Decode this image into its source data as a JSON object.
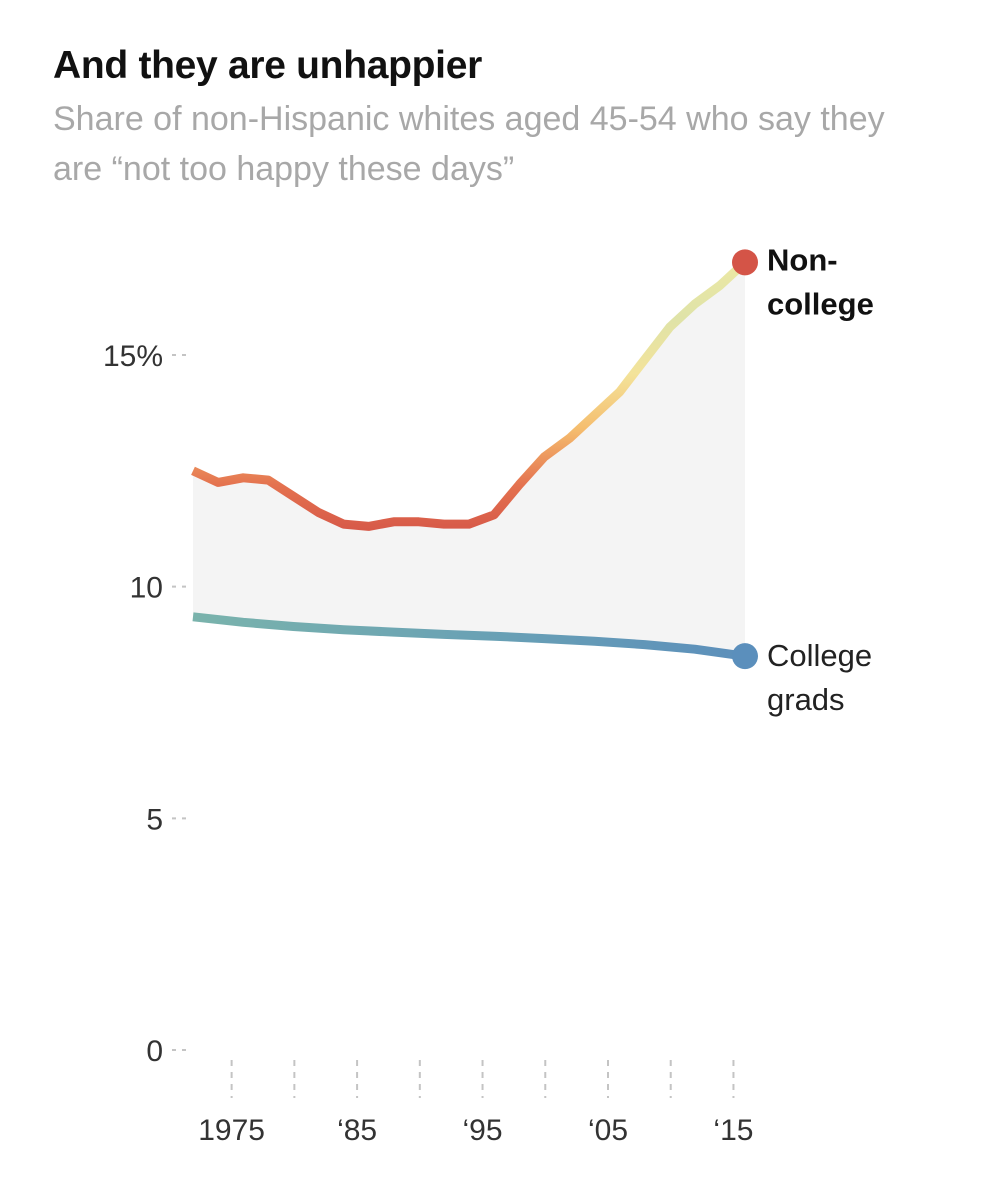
{
  "title": "And they are unhappier",
  "subtitle": "Share of non-Hispanic whites aged 45-54 who say they are “not too happy these days”",
  "chart_data": {
    "type": "line",
    "title": "And they are unhappier",
    "subtitle": "Share of non-Hispanic whites aged 45-54 who say they are “not too happy these days”",
    "xlabel": "",
    "ylabel": "",
    "xlim": [
      1972,
      2016
    ],
    "ylim": [
      0,
      17
    ],
    "grid": false,
    "y_ticks": [
      {
        "value": 0,
        "label": "0"
      },
      {
        "value": 5,
        "label": "5"
      },
      {
        "value": 10,
        "label": "10"
      },
      {
        "value": 15,
        "label": "15%"
      }
    ],
    "x_ticks": [
      {
        "value": 1975,
        "label": "1975"
      },
      {
        "value": 1980,
        "label": ""
      },
      {
        "value": 1985,
        "label": "‘85"
      },
      {
        "value": 1990,
        "label": ""
      },
      {
        "value": 1995,
        "label": "‘95"
      },
      {
        "value": 2000,
        "label": ""
      },
      {
        "value": 2005,
        "label": "‘05"
      },
      {
        "value": 2010,
        "label": ""
      },
      {
        "value": 2015,
        "label": "‘15"
      }
    ],
    "shaded_gap_between_series": true,
    "series": [
      {
        "name": "Non-college",
        "label_lines": [
          "Non-",
          "college"
        ],
        "gradient_colors": [
          "#ece8a4",
          "#dfe3a8",
          "#f3e39a",
          "#f5bd6e",
          "#e4724f",
          "#d45447"
        ],
        "end_marker_color": "#d45447",
        "x": [
          1972,
          1974,
          1976,
          1978,
          1980,
          1982,
          1984,
          1986,
          1988,
          1990,
          1992,
          1994,
          1996,
          1998,
          2000,
          2002,
          2004,
          2006,
          2008,
          2010,
          2012,
          2014,
          2016
        ],
        "y": [
          12.5,
          12.25,
          12.35,
          12.3,
          11.95,
          11.6,
          11.35,
          11.3,
          11.4,
          11.4,
          11.35,
          11.35,
          11.55,
          12.2,
          12.8,
          13.2,
          13.7,
          14.2,
          14.9,
          15.6,
          16.1,
          16.5,
          17.0
        ]
      },
      {
        "name": "College grads",
        "label_lines": [
          "College",
          "grads"
        ],
        "gradient_colors": [
          "#7ab3ac",
          "#6aa2b4",
          "#5c8fbb"
        ],
        "end_marker_color": "#5b8fbc",
        "x": [
          1972,
          1976,
          1980,
          1984,
          1988,
          1992,
          1996,
          2000,
          2004,
          2008,
          2012,
          2016
        ],
        "y": [
          9.35,
          9.23,
          9.14,
          9.07,
          9.02,
          8.97,
          8.93,
          8.88,
          8.82,
          8.75,
          8.65,
          8.5
        ]
      }
    ]
  }
}
